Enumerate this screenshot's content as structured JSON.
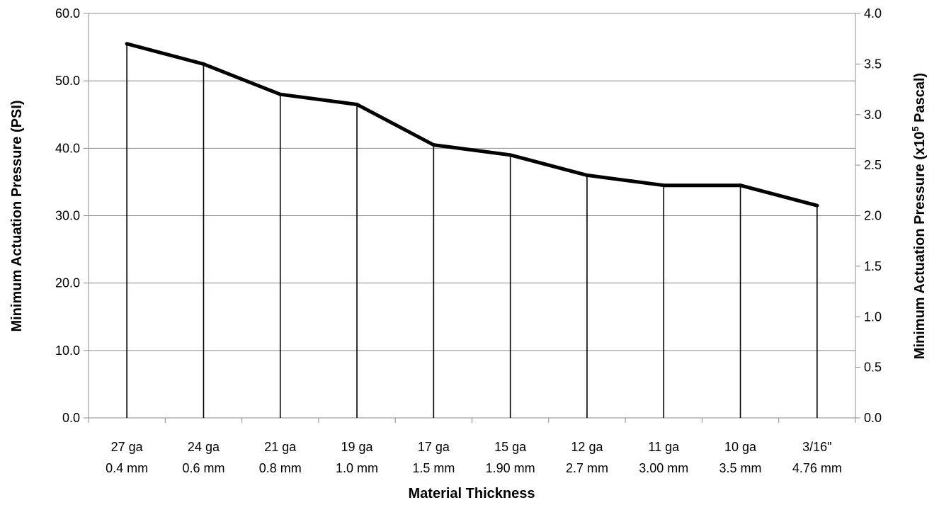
{
  "chart_data": {
    "type": "line",
    "title": "",
    "xlabel": "Material Thickness",
    "ylabel": "Minimum Actuation Pressure (PSI)",
    "y2label_prefix": "Minimum Actuation Pressure (x10",
    "y2label_sup": "5",
    "y2label_suffix": " Pascal)",
    "ylim": [
      0,
      60
    ],
    "y2lim": [
      0,
      4
    ],
    "yticks": [
      "0.0",
      "10.0",
      "20.0",
      "30.0",
      "40.0",
      "50.0",
      "60.0"
    ],
    "y2ticks": [
      "0.0",
      "0.5",
      "1.0",
      "1.5",
      "2.0",
      "2.5",
      "3.0",
      "3.5",
      "4.0"
    ],
    "grid": true,
    "drop_lines": true,
    "legend": "none",
    "line_color": "#000000",
    "categories": [
      [
        "27 ga",
        "0.4 mm"
      ],
      [
        "24 ga",
        "0.6 mm"
      ],
      [
        "21 ga",
        "0.8 mm"
      ],
      [
        "19 ga",
        "1.0 mm"
      ],
      [
        "17 ga",
        "1.5 mm"
      ],
      [
        "15 ga",
        "1.90 mm"
      ],
      [
        "12 ga",
        "2.7 mm"
      ],
      [
        "11 ga",
        "3.00 mm"
      ],
      [
        "10 ga",
        "3.5 mm"
      ],
      [
        "3/16\"",
        "4.76 mm"
      ]
    ],
    "values": [
      55.5,
      52.5,
      48.0,
      46.5,
      40.5,
      39.0,
      36.0,
      34.5,
      34.5,
      31.5
    ]
  }
}
